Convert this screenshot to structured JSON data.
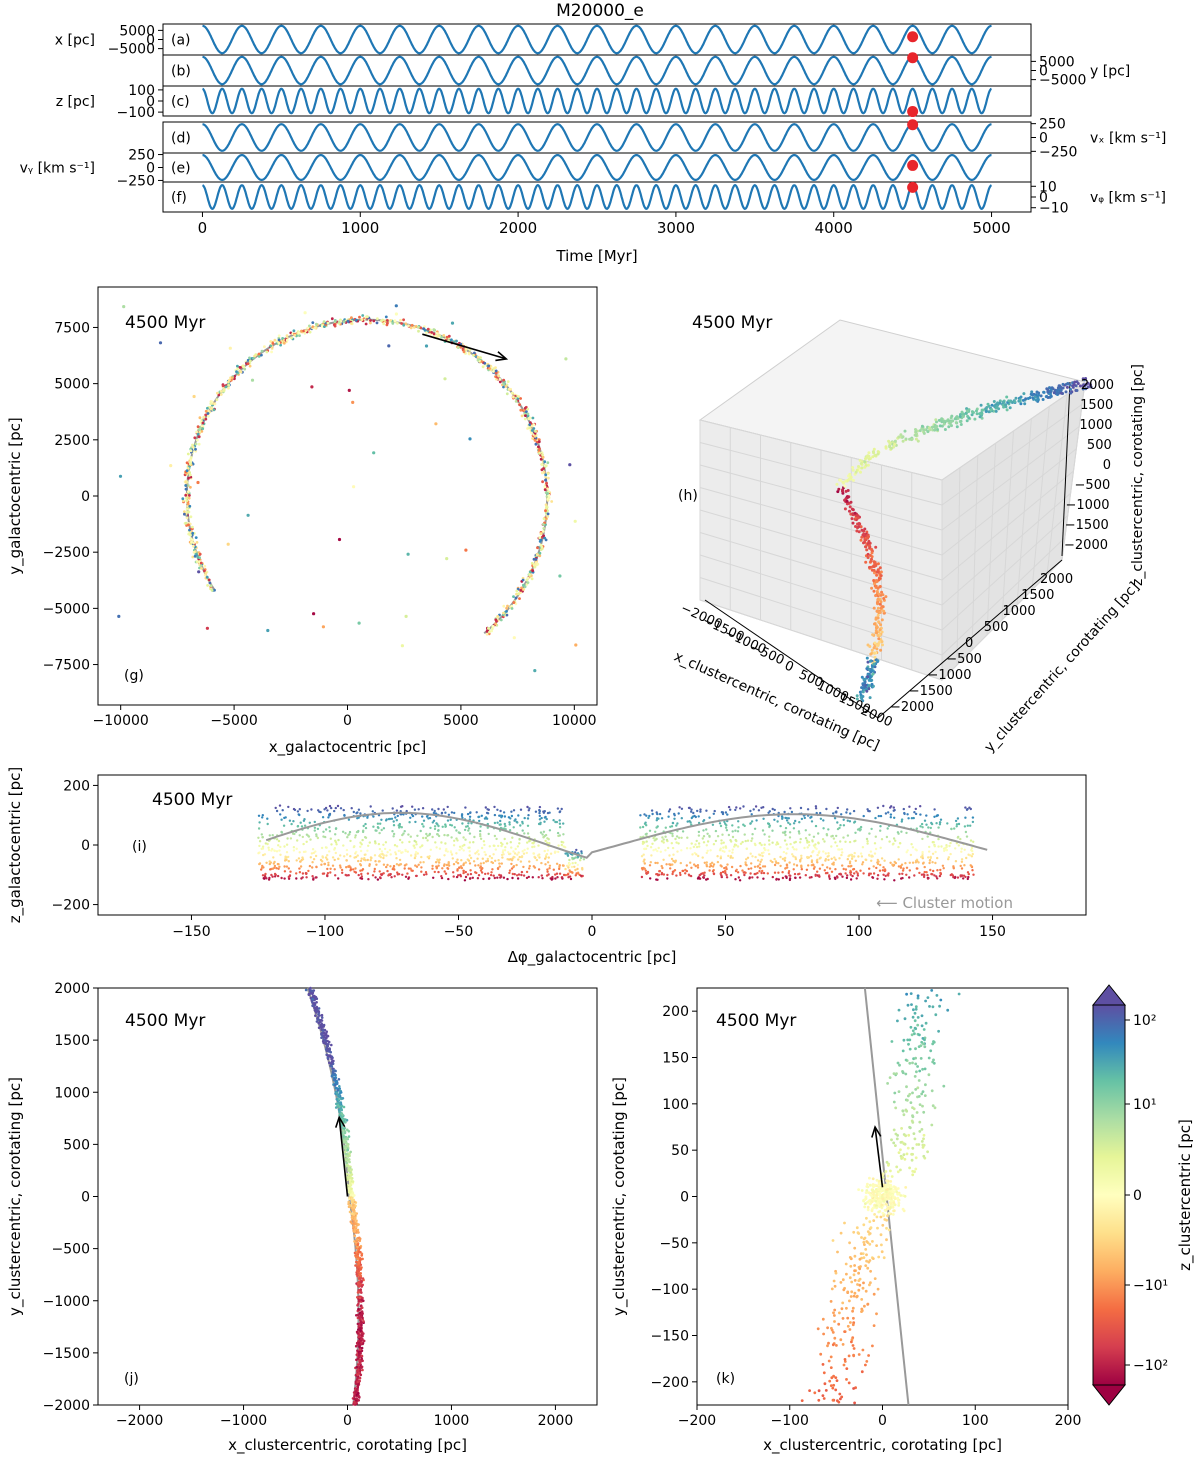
{
  "figure_title": "M20000_e",
  "colors": {
    "orbit": "#1f77b4",
    "marker": "#e8252b",
    "stream_line": "#999999",
    "arrow": "#000000"
  },
  "chart_data": [
    {
      "id": "time_series",
      "type": "line",
      "xlabel": "Time [Myr]",
      "xlim": [
        -250,
        5250
      ],
      "xticks": [
        0,
        1000,
        2000,
        3000,
        4000,
        5000
      ],
      "marker_time": 4500,
      "panels": [
        {
          "tag": "(a)",
          "label": "x [pc]",
          "side": "left",
          "ticks": [
            "5000",
            "0",
            "−5000"
          ],
          "tick_values": [
            5000,
            0,
            -5000
          ],
          "ylim": [
            -8500,
            8500
          ],
          "period": 250,
          "amplitude": 7500,
          "marker_value": 1500
        },
        {
          "tag": "(b)",
          "label": "y [pc]",
          "side": "right",
          "ticks": [
            "5000",
            "0",
            "−5000"
          ],
          "tick_values": [
            5000,
            0,
            -5000
          ],
          "ylim": [
            -8500,
            8500
          ],
          "period": 250,
          "amplitude": 7500,
          "marker_value": 7000
        },
        {
          "tag": "(c)",
          "label": "z [pc]",
          "side": "left",
          "ticks": [
            "100",
            "0",
            "−100"
          ],
          "tick_values": [
            100,
            0,
            -100
          ],
          "ylim": [
            -135,
            135
          ],
          "period": 125,
          "amplitude": 110,
          "marker_value": -95
        },
        {
          "tag": "(d)",
          "label": "vₓ [km s⁻¹]",
          "side": "right",
          "ticks": [
            "250",
            "0",
            "−250"
          ],
          "tick_values": [
            250,
            0,
            -250
          ],
          "ylim": [
            -280,
            280
          ],
          "period": 250,
          "amplitude": 240,
          "marker_value": 230
        },
        {
          "tag": "(e)",
          "label": "vᵧ [km s⁻¹]",
          "side": "left",
          "ticks": [
            "250",
            "0",
            "−250"
          ],
          "tick_values": [
            250,
            0,
            -250
          ],
          "ylim": [
            -280,
            280
          ],
          "period": 250,
          "amplitude": 240,
          "marker_value": 40
        },
        {
          "tag": "(f)",
          "label": "vᵩ [km s⁻¹]",
          "side": "right",
          "ticks": [
            "10",
            "0",
            "−10"
          ],
          "tick_values": [
            10,
            0,
            -10
          ],
          "ylim": [
            -14,
            14
          ],
          "period": 125,
          "amplitude": 11,
          "marker_value": 9
        }
      ]
    },
    {
      "id": "g",
      "type": "scatter",
      "tag": "(g)",
      "title": "4500 Myr",
      "xlabel": "x_galactocentric [pc]",
      "ylabel": "y_galactocentric [pc]",
      "xlim": [
        -11000,
        11000
      ],
      "ylim": [
        -9300,
        9300
      ],
      "xticks": [
        -10000,
        -5000,
        0,
        5000,
        10000
      ],
      "yticks": [
        -7500,
        -5000,
        -2500,
        0,
        2500,
        5000,
        7500
      ],
      "stream_radius": 7900,
      "stream_angle_range_deg": [
        -50,
        212
      ],
      "cluster_position": [
        3300,
        7200
      ],
      "velocity_arrow_to": [
        7000,
        6100
      ]
    },
    {
      "id": "h",
      "type": "scatter",
      "tag": "(h)",
      "title": "4500 Myr",
      "xlabel": "x_clustercentric, corotating [pc]",
      "ylabel": "y_clustercentric, corotating [pc]",
      "zlabel": "z_clustercentric, corotating [pc]",
      "xticks": [
        "−2000",
        "−1500",
        "−1000",
        "−500",
        "0",
        "500",
        "1000",
        "1500",
        "2000"
      ],
      "yticks": [
        "2000",
        "1500",
        "1000",
        "500",
        "0",
        "−500",
        "−1000",
        "−1500",
        "−2000"
      ],
      "zticks": [
        "2000",
        "1500",
        "1000",
        "500",
        "0",
        "−500",
        "−1000",
        "−1500",
        "−2000"
      ]
    },
    {
      "id": "i",
      "type": "scatter",
      "tag": "(i)",
      "title": "4500 Myr",
      "xlabel": "Δφ_galactocentric [pc]",
      "ylabel": "z_galactocentric [pc]",
      "xlim": [
        -185,
        185
      ],
      "ylim": [
        -235,
        235
      ],
      "xticks": [
        -150,
        -100,
        -50,
        0,
        50,
        100,
        150
      ],
      "yticks": [
        -200,
        0,
        200
      ],
      "annotation": "⟵ Cluster motion"
    },
    {
      "id": "j",
      "type": "scatter",
      "tag": "(j)",
      "title": "4500 Myr",
      "xlabel": "x_clustercentric, corotating [pc]",
      "ylabel": "y_clustercentric, corotating [pc]",
      "xlim": [
        -2400,
        2400
      ],
      "ylim": [
        -2000,
        2000
      ],
      "xticks": [
        -2000,
        -1000,
        0,
        1000,
        2000
      ],
      "yticks": [
        -2000,
        -1500,
        -1000,
        -500,
        0,
        500,
        1000,
        1500,
        2000
      ],
      "velocity_arrow_to": [
        -80,
        760
      ]
    },
    {
      "id": "k",
      "type": "scatter",
      "tag": "(k)",
      "title": "4500 Myr",
      "xlabel": "x_clustercentric, corotating [pc]",
      "ylabel": "y_clustercentric, corotating [pc]",
      "xlim": [
        -200,
        200
      ],
      "ylim": [
        -225,
        225
      ],
      "xticks": [
        -200,
        -100,
        0,
        100,
        200
      ],
      "yticks": [
        -200,
        -150,
        -100,
        -50,
        0,
        50,
        100,
        150,
        200
      ],
      "velocity_arrow_to": [
        -8,
        75
      ]
    }
  ],
  "colorbar": {
    "label": "z_clustercentric [pc]",
    "ticks": [
      "10²",
      "10¹",
      "0",
      "−10¹",
      "−10²"
    ],
    "colors": [
      "#5e4fa2",
      "#3288bd",
      "#66c2a5",
      "#abdda4",
      "#e6f598",
      "#ffffbf",
      "#fee08b",
      "#fdae61",
      "#f46d43",
      "#d53e4f",
      "#9e0142"
    ]
  }
}
